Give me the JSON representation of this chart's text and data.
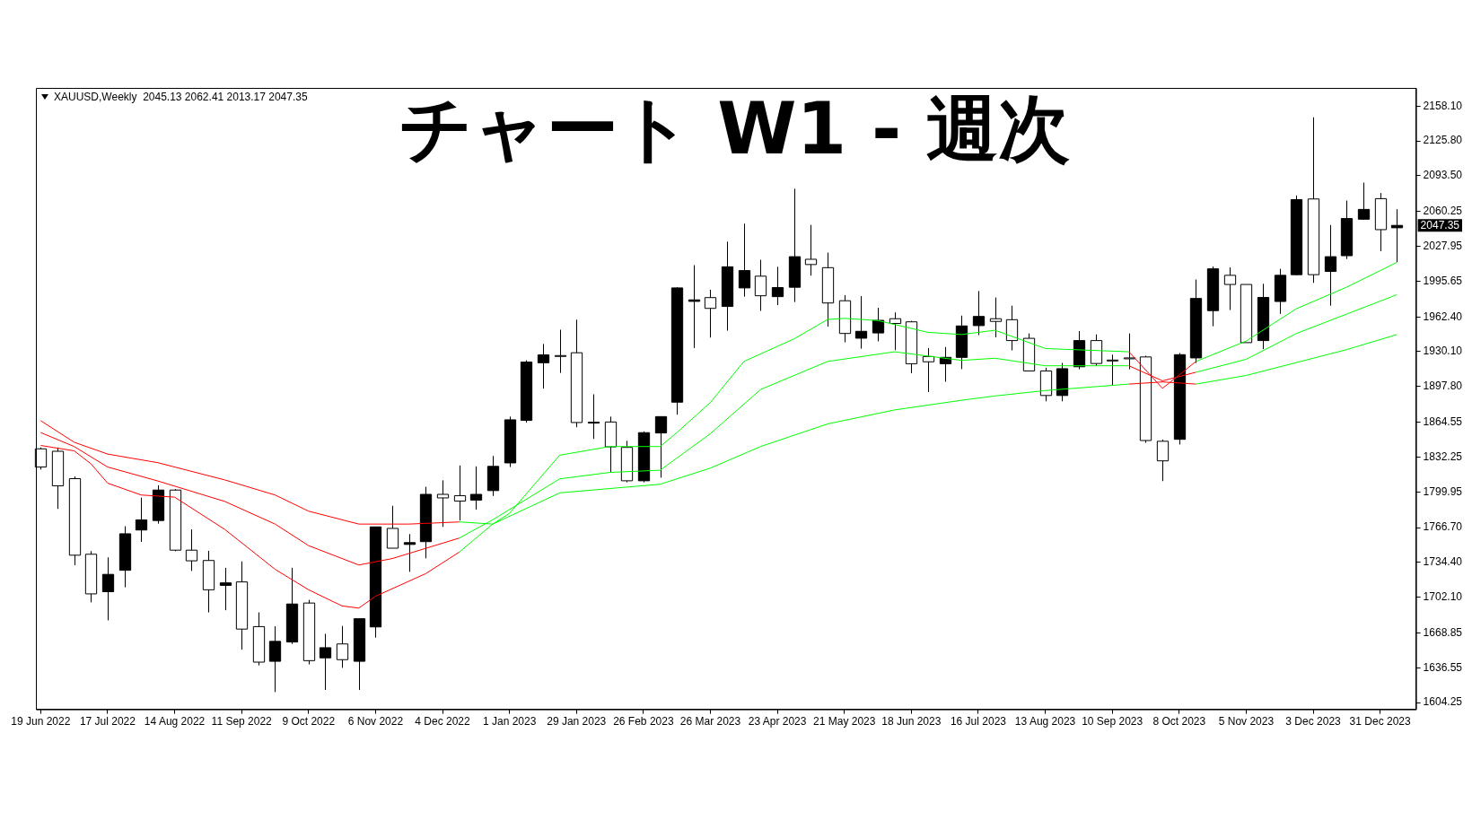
{
  "chart_data": {
    "type": "candlestick",
    "title": "チャート W1 - 週次",
    "subtitle": "XAUUSD,Weekly  2045.13 2062.41 2013.17 2047.35",
    "x": [
      "2022-06-19",
      "2022-06-26",
      "2022-07-03",
      "2022-07-10",
      "2022-07-17",
      "2022-07-24",
      "2022-07-31",
      "2022-08-07",
      "2022-08-14",
      "2022-08-21",
      "2022-08-28",
      "2022-09-04",
      "2022-09-11",
      "2022-09-18",
      "2022-09-25",
      "2022-10-02",
      "2022-10-09",
      "2022-10-16",
      "2022-10-23",
      "2022-10-30",
      "2022-11-06",
      "2022-11-13",
      "2022-11-20",
      "2022-11-27",
      "2022-12-04",
      "2022-12-11",
      "2022-12-18",
      "2022-12-25",
      "2023-01-01",
      "2023-01-08",
      "2023-01-15",
      "2023-01-22",
      "2023-01-29",
      "2023-02-05",
      "2023-02-12",
      "2023-02-19",
      "2023-02-26",
      "2023-03-05",
      "2023-03-12",
      "2023-03-19",
      "2023-03-26",
      "2023-04-02",
      "2023-04-09",
      "2023-04-16",
      "2023-04-23",
      "2023-04-30",
      "2023-05-07",
      "2023-05-14",
      "2023-05-21",
      "2023-05-28",
      "2023-06-04",
      "2023-06-11",
      "2023-06-18",
      "2023-06-25",
      "2023-07-02",
      "2023-07-09",
      "2023-07-16",
      "2023-07-23",
      "2023-07-30",
      "2023-08-06",
      "2023-08-13",
      "2023-08-20",
      "2023-08-27",
      "2023-09-03",
      "2023-09-10",
      "2023-09-17",
      "2023-09-24",
      "2023-10-01",
      "2023-10-08",
      "2023-10-15",
      "2023-10-22",
      "2023-10-29",
      "2023-11-05",
      "2023-11-12",
      "2023-11-19",
      "2023-11-26",
      "2023-12-03",
      "2023-12-10",
      "2023-12-17",
      "2023-12-24",
      "2023-12-31",
      "2024-01-07"
    ],
    "ohlc": [
      [
        1839.9,
        1841.1,
        1820.6,
        1823.0
      ],
      [
        1837.6,
        1841.1,
        1784.1,
        1805.5
      ],
      [
        1812.2,
        1814.2,
        1731.8,
        1741.1
      ],
      [
        1742.0,
        1744.9,
        1697.3,
        1705.2
      ],
      [
        1707.2,
        1739.1,
        1680.6,
        1723.3
      ],
      [
        1727.1,
        1768.0,
        1711.3,
        1761.0
      ],
      [
        1764.5,
        1794.6,
        1753.4,
        1773.9
      ],
      [
        1773.3,
        1806.0,
        1770.4,
        1801.6
      ],
      [
        1801.6,
        1802.5,
        1744.7,
        1745.8
      ],
      [
        1745.8,
        1765.1,
        1726.5,
        1735.9
      ],
      [
        1736.2,
        1745.2,
        1688.0,
        1709.0
      ],
      [
        1713.1,
        1729.4,
        1690.0,
        1715.4
      ],
      [
        1716.3,
        1735.3,
        1653.5,
        1672.5
      ],
      [
        1674.8,
        1688.0,
        1638.8,
        1641.8
      ],
      [
        1642.6,
        1675.1,
        1614.0,
        1661.1
      ],
      [
        1660.5,
        1729.4,
        1658.7,
        1695.8
      ],
      [
        1696.7,
        1699.6,
        1639.7,
        1643.2
      ],
      [
        1645.8,
        1668.1,
        1616.0,
        1655.2
      ],
      [
        1658.7,
        1675.4,
        1636.5,
        1644.1
      ],
      [
        1642.6,
        1682.1,
        1616.0,
        1682.1
      ],
      [
        1674.5,
        1767.4,
        1664.6,
        1767.4
      ],
      [
        1766.0,
        1787.0,
        1747.6,
        1747.6
      ],
      [
        1751.1,
        1760.7,
        1725.7,
        1752.8
      ],
      [
        1753.7,
        1804.6,
        1738.2,
        1797.6
      ],
      [
        1797.6,
        1810.7,
        1767.4,
        1794.3
      ],
      [
        1796.4,
        1824.4,
        1773.3,
        1791.4
      ],
      [
        1792.3,
        1823.6,
        1783.5,
        1797.6
      ],
      [
        1801.1,
        1833.2,
        1796.1,
        1823.6
      ],
      [
        1826.8,
        1869.8,
        1823.0,
        1866.8
      ],
      [
        1866.3,
        1922.1,
        1864.3,
        1920.4
      ],
      [
        1919.8,
        1937.3,
        1895.8,
        1927.1
      ],
      [
        1926.5,
        1950.5,
        1910.4,
        1926.0
      ],
      [
        1929.1,
        1959.8,
        1859.9,
        1864.3
      ],
      [
        1864.0,
        1890.5,
        1849.1,
        1864.6
      ],
      [
        1864.8,
        1869.8,
        1818.4,
        1841.7
      ],
      [
        1841.2,
        1847.3,
        1808.7,
        1810.2
      ],
      [
        1810.2,
        1856.1,
        1808.7,
        1854.9
      ],
      [
        1854.6,
        1869.8,
        1813.1,
        1869.8
      ],
      [
        1883.2,
        1989.9,
        1871.6,
        1989.3
      ],
      [
        1976.8,
        2010.4,
        1933.5,
        1978.2
      ],
      [
        1980.3,
        1987.6,
        1943.2,
        1970.3
      ],
      [
        1972.1,
        2032.3,
        1949.6,
        2008.9
      ],
      [
        1989.3,
        2049.0,
        1981.2,
        2005.4
      ],
      [
        2000.2,
        2015.4,
        1968.0,
        1982.0
      ],
      [
        1981.2,
        2008.9,
        1973.3,
        1989.6
      ],
      [
        1989.9,
        2081.4,
        1976.2,
        2018.3
      ],
      [
        2015.9,
        2047.8,
        2000.7,
        2011.0
      ],
      [
        2008.1,
        2022.1,
        1953.4,
        1975.3
      ],
      [
        1977.4,
        1982.6,
        1938.8,
        1947.0
      ],
      [
        1942.6,
        1981.7,
        1932.9,
        1949.0
      ],
      [
        1947.5,
        1970.9,
        1939.7,
        1959.2
      ],
      [
        1960.7,
        1966.5,
        1931.5,
        1956.3
      ],
      [
        1957.8,
        1958.7,
        1910.1,
        1918.9
      ],
      [
        1925.6,
        1933.5,
        1892.6,
        1920.7
      ],
      [
        1918.9,
        1934.4,
        1902.2,
        1924.8
      ],
      [
        1924.8,
        1963.6,
        1913.9,
        1954.0
      ],
      [
        1954.3,
        1986.4,
        1945.5,
        1962.8
      ],
      [
        1960.7,
        1980.4,
        1943.4,
        1958.2
      ],
      [
        1959.8,
        1972.8,
        1931.3,
        1940.4
      ],
      [
        1942.5,
        1947.0,
        1912.2,
        1912.2
      ],
      [
        1912.2,
        1915.2,
        1884.0,
        1889.4
      ],
      [
        1889.4,
        1919.7,
        1884.0,
        1914.3
      ],
      [
        1916.1,
        1949.2,
        1913.7,
        1940.4
      ],
      [
        1940.4,
        1946.1,
        1916.7,
        1919.1
      ],
      [
        1922.3,
        1927.3,
        1899.1,
        1921.9
      ],
      [
        1924.3,
        1947.0,
        1913.7,
        1923.9
      ],
      [
        1925.2,
        1926.4,
        1845.5,
        1847.6
      ],
      [
        1846.9,
        1848.5,
        1809.9,
        1828.7
      ],
      [
        1848.7,
        1928.8,
        1843.9,
        1927.3
      ],
      [
        1924.3,
        1997.1,
        1919.7,
        1979.5
      ],
      [
        1968.2,
        2009.2,
        1953.7,
        2007.0
      ],
      [
        2001.0,
        2008.3,
        1968.8,
        1992.5
      ],
      [
        1992.5,
        1992.5,
        1938.5,
        1938.5
      ],
      [
        1940.4,
        1993.1,
        1932.5,
        1980.4
      ],
      [
        1976.7,
        2007.0,
        1965.2,
        2001.0
      ],
      [
        2001.6,
        2075.2,
        2001.0,
        2071.3
      ],
      [
        2071.9,
        2147.7,
        1994.0,
        2001.6
      ],
      [
        2004.6,
        2047.7,
        1972.8,
        2018.3
      ],
      [
        2019.2,
        2070.4,
        2016.1,
        2053.7
      ],
      [
        2053.1,
        2087.1,
        2052.5,
        2062.2
      ],
      [
        2072.2,
        2077.4,
        2023.4,
        2043.4
      ],
      [
        2045.13,
        2062.41,
        2013.17,
        2047.35
      ]
    ],
    "colors": [
      "#ffffff",
      "#ffffff",
      "#ffffff",
      "#ffffff",
      "#000000",
      "#000000",
      "#000000",
      "#000000",
      "#ffffff",
      "#ffffff",
      "#ffffff",
      "#000000",
      "#ffffff",
      "#ffffff",
      "#000000",
      "#000000",
      "#ffffff",
      "#000000",
      "#ffffff",
      "#000000",
      "#000000",
      "#ffffff",
      "#000000",
      "#000000",
      "#ffffff",
      "#ffffff",
      "#000000",
      "#000000",
      "#000000",
      "#000000",
      "#000000",
      "#ffffff",
      "#ffffff",
      "#000000",
      "#ffffff",
      "#ffffff",
      "#000000",
      "#000000",
      "#000000",
      "#000000",
      "#ffffff",
      "#000000",
      "#000000",
      "#ffffff",
      "#000000",
      "#000000",
      "#ffffff",
      "#ffffff",
      "#ffffff",
      "#000000",
      "#000000",
      "#ffffff",
      "#ffffff",
      "#ffffff",
      "#000000",
      "#000000",
      "#000000",
      "#ffffff",
      "#ffffff",
      "#ffffff",
      "#ffffff",
      "#000000",
      "#000000",
      "#ffffff",
      "#ffffff",
      "#ffffff",
      "#ffffff",
      "#ffffff",
      "#000000",
      "#000000",
      "#000000",
      "#ffffff",
      "#ffffff",
      "#000000",
      "#000000",
      "#000000",
      "#ffffff",
      "#000000",
      "#000000",
      "#000000",
      "#ffffff",
      "#000000"
    ],
    "series": [
      {
        "type": "line",
        "color": "#ff0000",
        "x": [
          "2022-06-19",
          "2022-07-03",
          "2022-07-10",
          "2022-07-17",
          "2022-07-31",
          "2022-08-14",
          "2022-09-04",
          "2022-09-25",
          "2022-10-09",
          "2022-10-23",
          "2022-10-30",
          "2022-11-06",
          "2022-11-27",
          "2022-12-11"
        ],
        "values": [
          1843,
          1838,
          1826,
          1808,
          1797,
          1795,
          1765,
          1728,
          1709,
          1694,
          1692,
          1703,
          1724,
          1744
        ]
      },
      {
        "type": "line",
        "color": "#00ff00",
        "x": [
          "2022-12-11",
          "2022-12-25",
          "2023-01-01",
          "2023-01-22",
          "2023-02-12",
          "2023-03-05",
          "2023-03-12",
          "2023-03-26",
          "2023-04-09",
          "2023-04-30",
          "2023-05-14",
          "2023-05-21",
          "2023-06-04",
          "2023-06-25",
          "2023-07-09",
          "2023-07-23",
          "2023-08-13",
          "2023-09-17"
        ],
        "values": [
          1744,
          1770,
          1780,
          1834,
          1842,
          1842,
          1855,
          1883,
          1921,
          1942,
          1960,
          1961,
          1959,
          1948,
          1946,
          1950,
          1933,
          1930
        ]
      },
      {
        "type": "line",
        "color": "#ff0000",
        "x": [
          "2023-09-17",
          "2023-10-01",
          "2023-10-15"
        ],
        "values": [
          1930,
          1896,
          1921
        ]
      },
      {
        "type": "line",
        "color": "#00ff00",
        "x": [
          "2023-10-15",
          "2023-11-05",
          "2023-11-26",
          "2023-12-17",
          "2024-01-07"
        ],
        "values": [
          1921,
          1940,
          1970,
          1990,
          2013
        ]
      },
      {
        "type": "line",
        "color": "#ff0000",
        "x": [
          "2022-06-19",
          "2022-07-03",
          "2022-07-17",
          "2022-08-07",
          "2022-09-04",
          "2022-09-25",
          "2022-10-09",
          "2022-10-30",
          "2022-11-13",
          "2022-12-11"
        ],
        "values": [
          1855,
          1842,
          1823,
          1810,
          1791,
          1770,
          1750,
          1732,
          1738,
          1757
        ]
      },
      {
        "type": "line",
        "color": "#00ff00",
        "x": [
          "2022-12-11",
          "2022-12-25",
          "2023-01-22",
          "2023-02-12",
          "2023-03-05",
          "2023-03-26",
          "2023-04-16",
          "2023-05-14",
          "2023-06-11",
          "2023-07-09",
          "2023-07-23",
          "2023-08-13",
          "2023-09-17"
        ],
        "values": [
          1757,
          1774,
          1812,
          1818,
          1820,
          1854,
          1895,
          1921,
          1930,
          1922,
          1924,
          1917,
          1917
        ]
      },
      {
        "type": "line",
        "color": "#ff0000",
        "x": [
          "2023-09-17",
          "2023-10-01",
          "2023-10-15"
        ],
        "values": [
          1917,
          1903,
          1911
        ]
      },
      {
        "type": "line",
        "color": "#00ff00",
        "x": [
          "2023-10-15",
          "2023-11-05",
          "2023-11-26",
          "2023-12-17",
          "2024-01-07"
        ],
        "values": [
          1911,
          1923,
          1947,
          1965,
          1983
        ]
      },
      {
        "type": "line",
        "color": "#ff0000",
        "x": [
          "2022-06-19",
          "2022-07-03",
          "2022-07-17",
          "2022-08-07",
          "2022-09-04",
          "2022-09-25",
          "2022-10-09",
          "2022-10-30",
          "2022-11-20",
          "2022-12-11"
        ],
        "values": [
          1866,
          1846,
          1835,
          1827,
          1811,
          1797,
          1782,
          1770,
          1770,
          1772
        ]
      },
      {
        "type": "line",
        "color": "#00ff00",
        "x": [
          "2022-12-11",
          "2022-12-25",
          "2023-01-22",
          "2023-02-12",
          "2023-03-05",
          "2023-03-26",
          "2023-04-16",
          "2023-05-14",
          "2023-06-11",
          "2023-07-09",
          "2023-07-23",
          "2023-08-13",
          "2023-09-17"
        ],
        "values": [
          1772,
          1770,
          1799,
          1803,
          1807,
          1822,
          1842,
          1863,
          1876,
          1885,
          1889,
          1894,
          1900
        ]
      },
      {
        "type": "line",
        "color": "#ff0000",
        "x": [
          "2023-09-17",
          "2023-10-01",
          "2023-10-15"
        ],
        "values": [
          1900,
          1902,
          1900
        ]
      },
      {
        "type": "line",
        "color": "#00ff00",
        "x": [
          "2023-10-15",
          "2023-11-05",
          "2023-11-26",
          "2023-12-17",
          "2024-01-07"
        ],
        "values": [
          1900,
          1908,
          1920,
          1932,
          1946
        ]
      }
    ],
    "xlim": [
      "2022-06-17",
      "2024-01-15"
    ],
    "xticks": [
      {
        "value": "2022-06-19",
        "label": "19 Jun 2022"
      },
      {
        "value": "2022-07-17",
        "label": "17 Jul 2022"
      },
      {
        "value": "2022-08-14",
        "label": "14 Aug 2022"
      },
      {
        "value": "2022-09-11",
        "label": "11 Sep 2022"
      },
      {
        "value": "2022-10-09",
        "label": "9 Oct 2022"
      },
      {
        "value": "2022-11-06",
        "label": "6 Nov 2022"
      },
      {
        "value": "2022-12-04",
        "label": "4 Dec 2022"
      },
      {
        "value": "2023-01-01",
        "label": "1 Jan 2023"
      },
      {
        "value": "2023-01-29",
        "label": "29 Jan 2023"
      },
      {
        "value": "2023-02-26",
        "label": "26 Feb 2023"
      },
      {
        "value": "2023-03-26",
        "label": "26 Mar 2023"
      },
      {
        "value": "2023-04-23",
        "label": "23 Apr 2023"
      },
      {
        "value": "2023-05-21",
        "label": "21 May 2023"
      },
      {
        "value": "2023-06-18",
        "label": "18 Jun 2023"
      },
      {
        "value": "2023-07-16",
        "label": "16 Jul 2023"
      },
      {
        "value": "2023-08-13",
        "label": "13 Aug 2023"
      },
      {
        "value": "2023-09-10",
        "label": "10 Sep 2023"
      },
      {
        "value": "2023-10-08",
        "label": "8 Oct 2023"
      },
      {
        "value": "2023-11-05",
        "label": "5 Nov 2023"
      },
      {
        "value": "2023-12-03",
        "label": "3 Dec 2023"
      },
      {
        "value": "2023-12-31",
        "label": "31 Dec 2023"
      }
    ],
    "ylim": [
      1598,
      2175
    ],
    "yticks": [
      {
        "value": 2158.1,
        "label": "2158.10"
      },
      {
        "value": 2125.8,
        "label": "2125.80"
      },
      {
        "value": 2093.5,
        "label": "2093.50"
      },
      {
        "value": 2060.25,
        "label": "2060.25"
      },
      {
        "value": 2027.95,
        "label": "2027.95"
      },
      {
        "value": 1995.65,
        "label": "1995.65"
      },
      {
        "value": 1962.4,
        "label": "1962.40"
      },
      {
        "value": 1930.1,
        "label": "1930.10"
      },
      {
        "value": 1897.8,
        "label": "1897.80"
      },
      {
        "value": 1864.55,
        "label": "1864.55"
      },
      {
        "value": 1832.25,
        "label": "1832.25"
      },
      {
        "value": 1799.95,
        "label": "1799.95"
      },
      {
        "value": 1766.7,
        "label": "1766.70"
      },
      {
        "value": 1734.4,
        "label": "1734.40"
      },
      {
        "value": 1702.1,
        "label": "1702.10"
      },
      {
        "value": 1668.85,
        "label": "1668.85"
      },
      {
        "value": 1636.55,
        "label": "1636.55"
      },
      {
        "value": 1604.25,
        "label": "1604.25"
      }
    ],
    "annotations": [
      {
        "text": "2047.35",
        "x": "2024-01-07",
        "y": 2047.35
      }
    ]
  }
}
